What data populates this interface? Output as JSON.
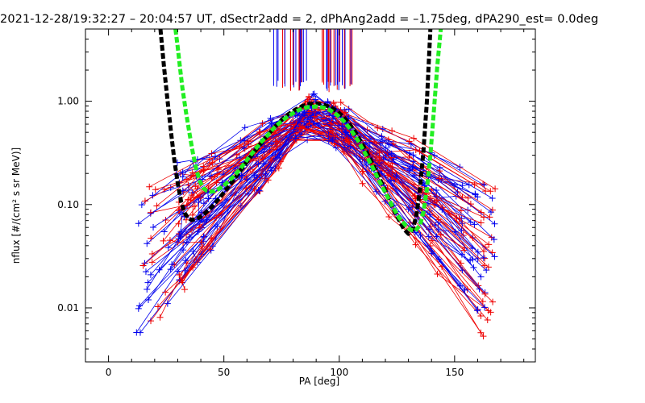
{
  "title": "2021-12-28/19:32:27 – 20:04:57 UT, dSectr2add = 2, dPhAng2add = –1.75deg, dPA290_est=   0.0deg",
  "chart_data": {
    "type": "line",
    "xlabel": "PA [deg]",
    "ylabel": "nflux [#/(cm² s sr MeV)]",
    "xlim": [
      -10,
      185
    ],
    "ylim": [
      0.003,
      5.0
    ],
    "y_scale": "log",
    "x_ticks": [
      0,
      50,
      100,
      150
    ],
    "y_ticks": [
      0.01,
      0.1,
      1.0
    ],
    "x_tick_labels": [
      "0",
      "50",
      "100",
      "150"
    ],
    "y_tick_labels": [
      "0.01",
      "0.10",
      "1.00"
    ],
    "colors": {
      "red_series": "#ee0000",
      "blue_series": "#0000ee",
      "fit_black": "#000000",
      "fit_green": "#22ee22"
    },
    "series": [
      {
        "color": "#000000",
        "style": "thick-dashed",
        "x": [
          22.5,
          24,
          25.5,
          27,
          28.5,
          30,
          31.5,
          33,
          34.5,
          36,
          37.5,
          39,
          40.5,
          42,
          45,
          48,
          51,
          54,
          57,
          60,
          63,
          66,
          69,
          72,
          75,
          78,
          81,
          84,
          87,
          90,
          93,
          96,
          99,
          102,
          105,
          108,
          111,
          114,
          117,
          120,
          123,
          126,
          128,
          130,
          132,
          133.5,
          135,
          136.5,
          138,
          139.5
        ],
        "y": [
          5.0,
          2.2,
          1.05,
          0.52,
          0.27,
          0.16,
          0.105,
          0.083,
          0.074,
          0.071,
          0.072,
          0.074,
          0.078,
          0.083,
          0.096,
          0.115,
          0.14,
          0.17,
          0.21,
          0.26,
          0.32,
          0.39,
          0.47,
          0.56,
          0.66,
          0.75,
          0.83,
          0.9,
          0.94,
          0.95,
          0.93,
          0.88,
          0.8,
          0.7,
          0.58,
          0.46,
          0.35,
          0.26,
          0.19,
          0.135,
          0.095,
          0.07,
          0.058,
          0.052,
          0.058,
          0.08,
          0.14,
          0.33,
          1.0,
          5.0
        ]
      },
      {
        "color": "#22ee22",
        "style": "thick-dashed",
        "x": [
          29,
          30,
          31,
          32,
          33.5,
          35,
          36.5,
          38,
          39.5,
          41,
          42.5,
          44,
          46,
          48,
          51,
          54,
          57,
          60,
          63,
          66,
          69,
          72,
          75,
          78,
          81,
          84,
          87,
          90,
          93,
          96,
          99,
          102,
          105,
          108,
          111,
          114,
          117,
          120,
          123,
          126,
          129,
          131,
          133,
          135,
          136.5,
          138,
          139.5,
          141,
          142.5,
          144
        ],
        "y": [
          5.0,
          3.3,
          2.1,
          1.35,
          0.8,
          0.5,
          0.32,
          0.22,
          0.17,
          0.145,
          0.136,
          0.133,
          0.135,
          0.142,
          0.16,
          0.185,
          0.22,
          0.27,
          0.33,
          0.4,
          0.47,
          0.56,
          0.64,
          0.72,
          0.79,
          0.85,
          0.88,
          0.89,
          0.87,
          0.82,
          0.74,
          0.64,
          0.53,
          0.42,
          0.32,
          0.24,
          0.175,
          0.13,
          0.097,
          0.074,
          0.062,
          0.057,
          0.056,
          0.063,
          0.085,
          0.14,
          0.3,
          0.8,
          2.2,
          5.0
        ]
      }
    ]
  }
}
